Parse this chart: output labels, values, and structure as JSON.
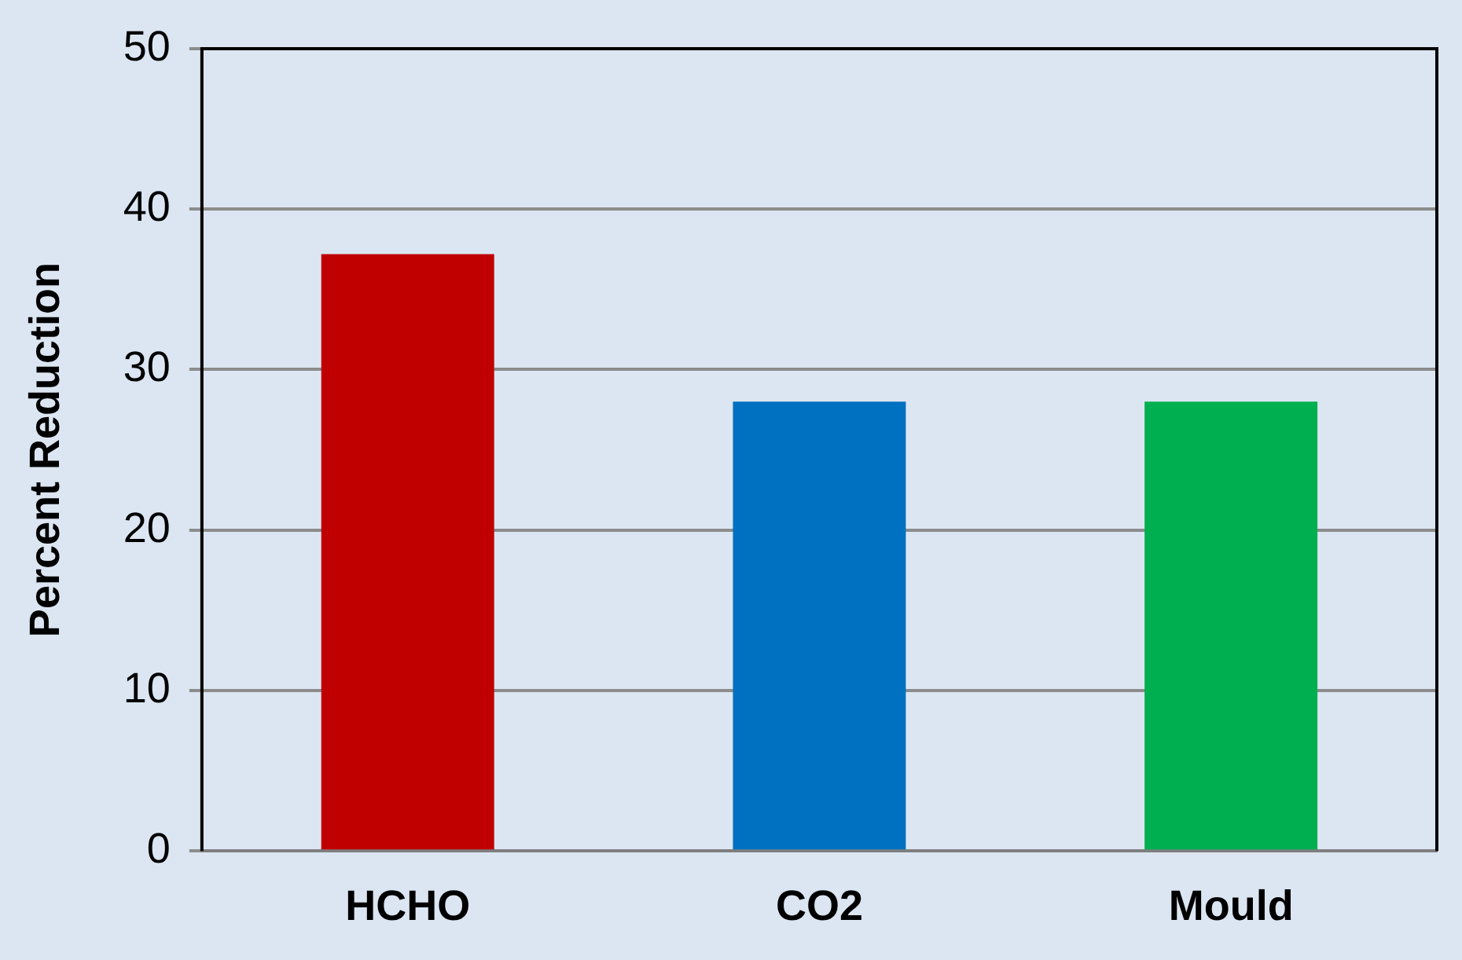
{
  "chart_data": {
    "type": "bar",
    "ylabel": "Percent Reduction",
    "categories": [
      "HCHO",
      "CO2",
      "Mould"
    ],
    "values": [
      37.2,
      28,
      28
    ],
    "colors": [
      "#c00000",
      "#0070c0",
      "#00b050"
    ],
    "ylim": [
      0,
      50
    ],
    "yticks": [
      0,
      10,
      20,
      30,
      40,
      50
    ],
    "grid": "y",
    "legend": false
  }
}
